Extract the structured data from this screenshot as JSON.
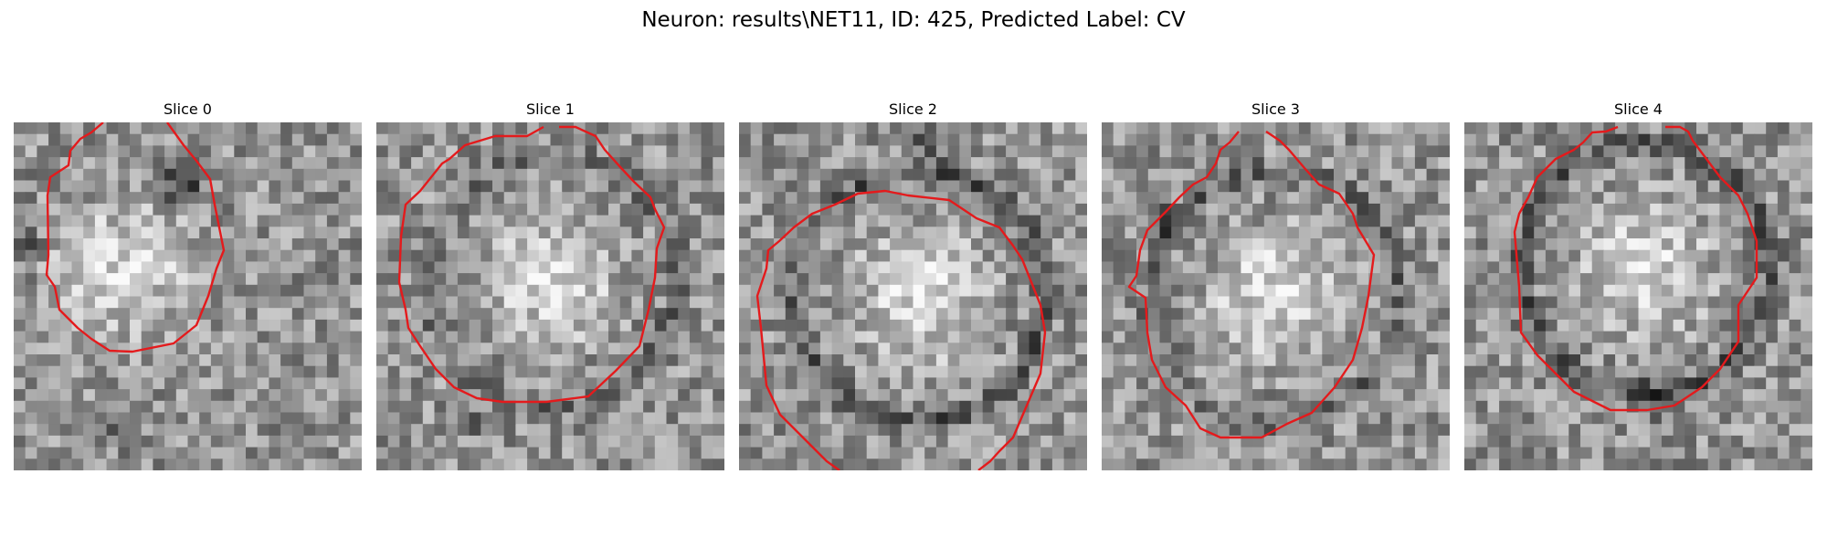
{
  "figure": {
    "title": "Neuron: results\\NET11, ID: 425, Predicted Label: CV"
  },
  "colors": {
    "contour": "#e41a1c",
    "background": "#ffffff"
  },
  "panels": [
    {
      "title": "Slice 0",
      "image": "grayscale microscopy patch: bright nucleus lower-left, dark blob upper-center",
      "seed": 11,
      "bright_center": [
        0.32,
        0.42
      ],
      "ring": 0.0,
      "dark_blobs": [
        [
          0.48,
          0.18,
          0.1
        ],
        [
          0.3,
          0.88,
          0.08
        ],
        [
          0.02,
          0.35,
          0.08
        ]
      ]
    },
    {
      "title": "Slice 1",
      "image": "grayscale microscopy patch: round cell body with dark rim",
      "seed": 23,
      "bright_center": [
        0.5,
        0.45
      ],
      "ring": 0.55,
      "dark_blobs": [
        [
          0.3,
          0.85,
          0.06
        ]
      ]
    },
    {
      "title": "Slice 2",
      "image": "grayscale microscopy patch: large bright cell body",
      "seed": 37,
      "bright_center": [
        0.52,
        0.5
      ],
      "ring": 0.8,
      "dark_blobs": [
        [
          0.55,
          0.05,
          0.08
        ]
      ]
    },
    {
      "title": "Slice 3",
      "image": "grayscale microscopy patch: mottled cell body with dark rim",
      "seed": 51,
      "bright_center": [
        0.5,
        0.5
      ],
      "ring": 0.6,
      "dark_blobs": [
        [
          0.2,
          0.3,
          0.08
        ]
      ]
    },
    {
      "title": "Slice 4",
      "image": "grayscale microscopy patch: bright cell body with thick dark ring",
      "seed": 67,
      "bright_center": [
        0.52,
        0.42
      ],
      "ring": 0.9,
      "dark_blobs": [
        [
          0.55,
          0.8,
          0.08
        ]
      ]
    }
  ]
}
